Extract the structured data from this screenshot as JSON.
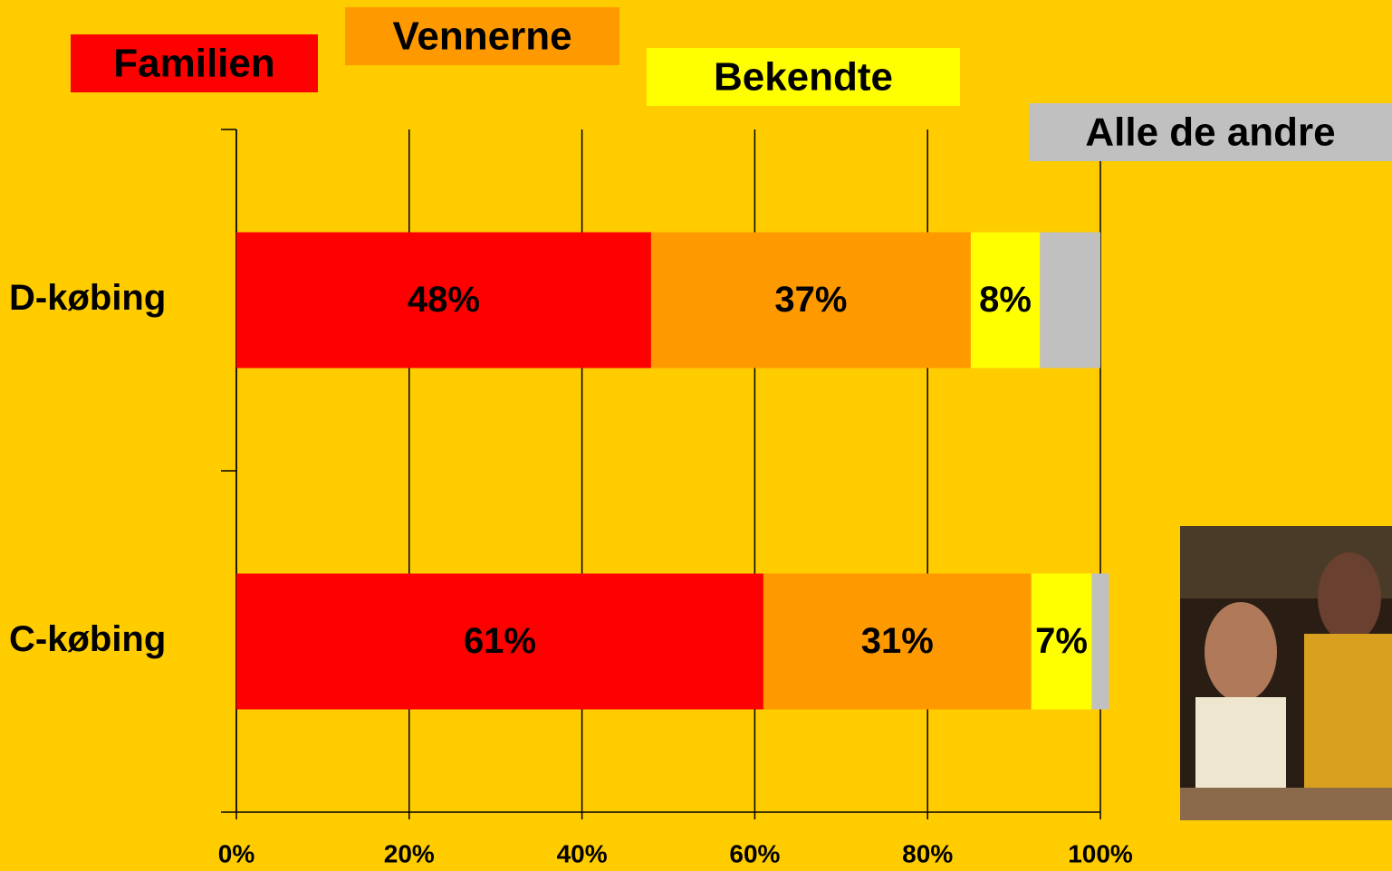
{
  "chart_data": {
    "type": "stacked-bar-horizontal",
    "categories": [
      "D-købing",
      "C-købing"
    ],
    "series": [
      {
        "name": "Familien",
        "color": "#ff0000",
        "values": [
          48,
          61
        ],
        "value_labels": [
          "48%",
          "61%"
        ]
      },
      {
        "name": "Vennerne",
        "color": "#ff9900",
        "values": [
          37,
          31
        ],
        "value_labels": [
          "37%",
          "31%"
        ]
      },
      {
        "name": "Bekendte",
        "color": "#ffff00",
        "values": [
          8,
          7
        ],
        "value_labels": [
          "8%",
          "7%"
        ]
      },
      {
        "name": "Alle de andre",
        "color": "#c0c0c0",
        "values": [
          7,
          2
        ]
      }
    ],
    "xlim": [
      0,
      100
    ],
    "xticks": [
      {
        "value": 0,
        "label": "0%"
      },
      {
        "value": 20,
        "label": "20%"
      },
      {
        "value": 40,
        "label": "40%"
      },
      {
        "value": 60,
        "label": "60%"
      },
      {
        "value": 80,
        "label": "80%"
      },
      {
        "value": 100,
        "label": "100%"
      }
    ],
    "grid": true
  }
}
